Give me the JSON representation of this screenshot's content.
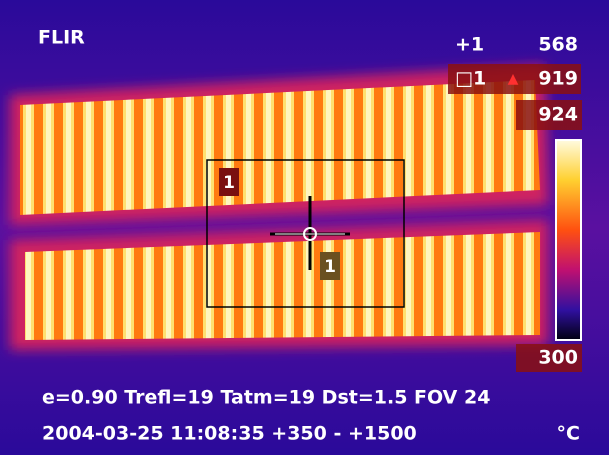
{
  "header": {
    "logo": "FLIR"
  },
  "readouts": {
    "spot": {
      "label": "+1",
      "value": "568"
    },
    "box": {
      "label": "□1",
      "alarm": "▲",
      "value": "919"
    }
  },
  "scale": {
    "max": "924",
    "min": "300",
    "unit": "°C"
  },
  "markers": {
    "box_label": "1",
    "spot_label": "1"
  },
  "footer": {
    "parameters": "e=0.90 Trefl=19 Tatm=19 Dst=1.5 FOV 24",
    "status": "2004-03-25 11:08:35  +350 -  +1500"
  }
}
